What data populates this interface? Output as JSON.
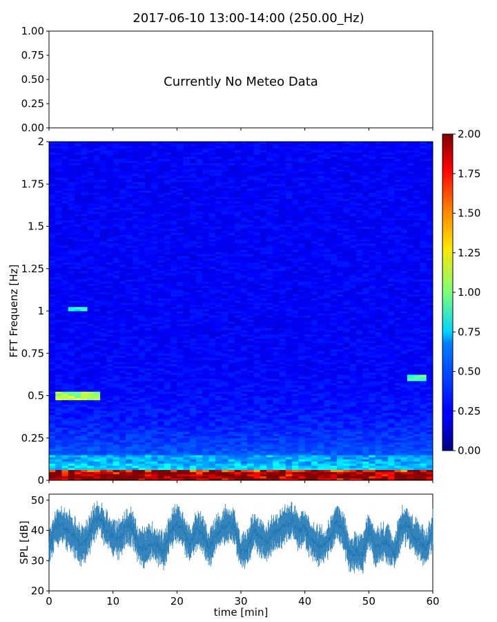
{
  "title": "2017-06-10 13:00-14:00 (250.00_Hz)",
  "chart_data": [
    {
      "type": "line",
      "panel": "meteo",
      "title": "2017-06-10 13:00-14:00 (250.00_Hz)",
      "annotation": "Currently No Meteo Data",
      "ylim": [
        0,
        1
      ],
      "yticks": [
        "0.00",
        "0.25",
        "0.50",
        "0.75",
        "1.00"
      ],
      "series": []
    },
    {
      "type": "heatmap",
      "panel": "spectrogram",
      "ylabel": "FFT Frequenz [Hz]",
      "xlim": [
        0,
        60
      ],
      "ylim": [
        0,
        2
      ],
      "yticks": [
        "0",
        "0.25",
        "0.5",
        "0.75",
        "1",
        "1.25",
        "1.5",
        "1.75",
        "2"
      ],
      "colormap": "jet",
      "colorbar": {
        "range": [
          0,
          2
        ],
        "ticks": [
          "0.00",
          "0.25",
          "0.50",
          "0.75",
          "1.00",
          "1.25",
          "1.50",
          "1.75",
          "2.00"
        ]
      },
      "features": [
        {
          "x": [
            1,
            8
          ],
          "y": [
            0.48,
            0.53
          ],
          "value": 1.1
        },
        {
          "x": [
            3,
            6
          ],
          "y": [
            1.0,
            1.03
          ],
          "value": 0.8
        },
        {
          "x": [
            56,
            59
          ],
          "y": [
            0.59,
            0.63
          ],
          "value": 0.9
        },
        {
          "x": [
            0,
            60
          ],
          "y": [
            0,
            0.05
          ],
          "value": 1.8
        }
      ]
    },
    {
      "type": "line",
      "panel": "spl",
      "xlabel": "time [min]",
      "ylabel": "SPL [dB]",
      "xlim": [
        0,
        60
      ],
      "ylim": [
        20,
        52
      ],
      "xticks": [
        "0",
        "10",
        "20",
        "30",
        "40",
        "50",
        "60"
      ],
      "yticks": [
        "20",
        "30",
        "40",
        "50"
      ],
      "color": "#1f77b4",
      "series": [
        {
          "x": [
            0,
            1,
            2,
            3,
            4,
            5,
            6,
            7,
            8,
            9,
            10,
            11,
            12,
            13,
            14,
            15,
            16,
            17,
            18,
            19,
            20,
            21,
            22,
            23,
            24,
            25,
            26,
            27,
            28,
            29,
            30,
            31,
            32,
            33,
            34,
            35,
            36,
            37,
            38,
            39,
            40,
            41,
            42,
            43,
            44,
            45,
            46,
            47,
            48,
            49,
            50,
            51,
            52,
            53,
            54,
            55,
            56,
            57,
            58,
            59,
            60
          ],
          "y": [
            34,
            41,
            42,
            40,
            38,
            35,
            37,
            43,
            44,
            40,
            38,
            37,
            41,
            41,
            35,
            34,
            36,
            35,
            33,
            40,
            42,
            40,
            35,
            40,
            39,
            34,
            38,
            41,
            42,
            41,
            33,
            34,
            40,
            38,
            36,
            39,
            40,
            42,
            43,
            40,
            41,
            37,
            35,
            35,
            38,
            43,
            40,
            32,
            33,
            32,
            40,
            34,
            36,
            36,
            32,
            41,
            42,
            38,
            36,
            34,
            40
          ]
        }
      ]
    }
  ]
}
